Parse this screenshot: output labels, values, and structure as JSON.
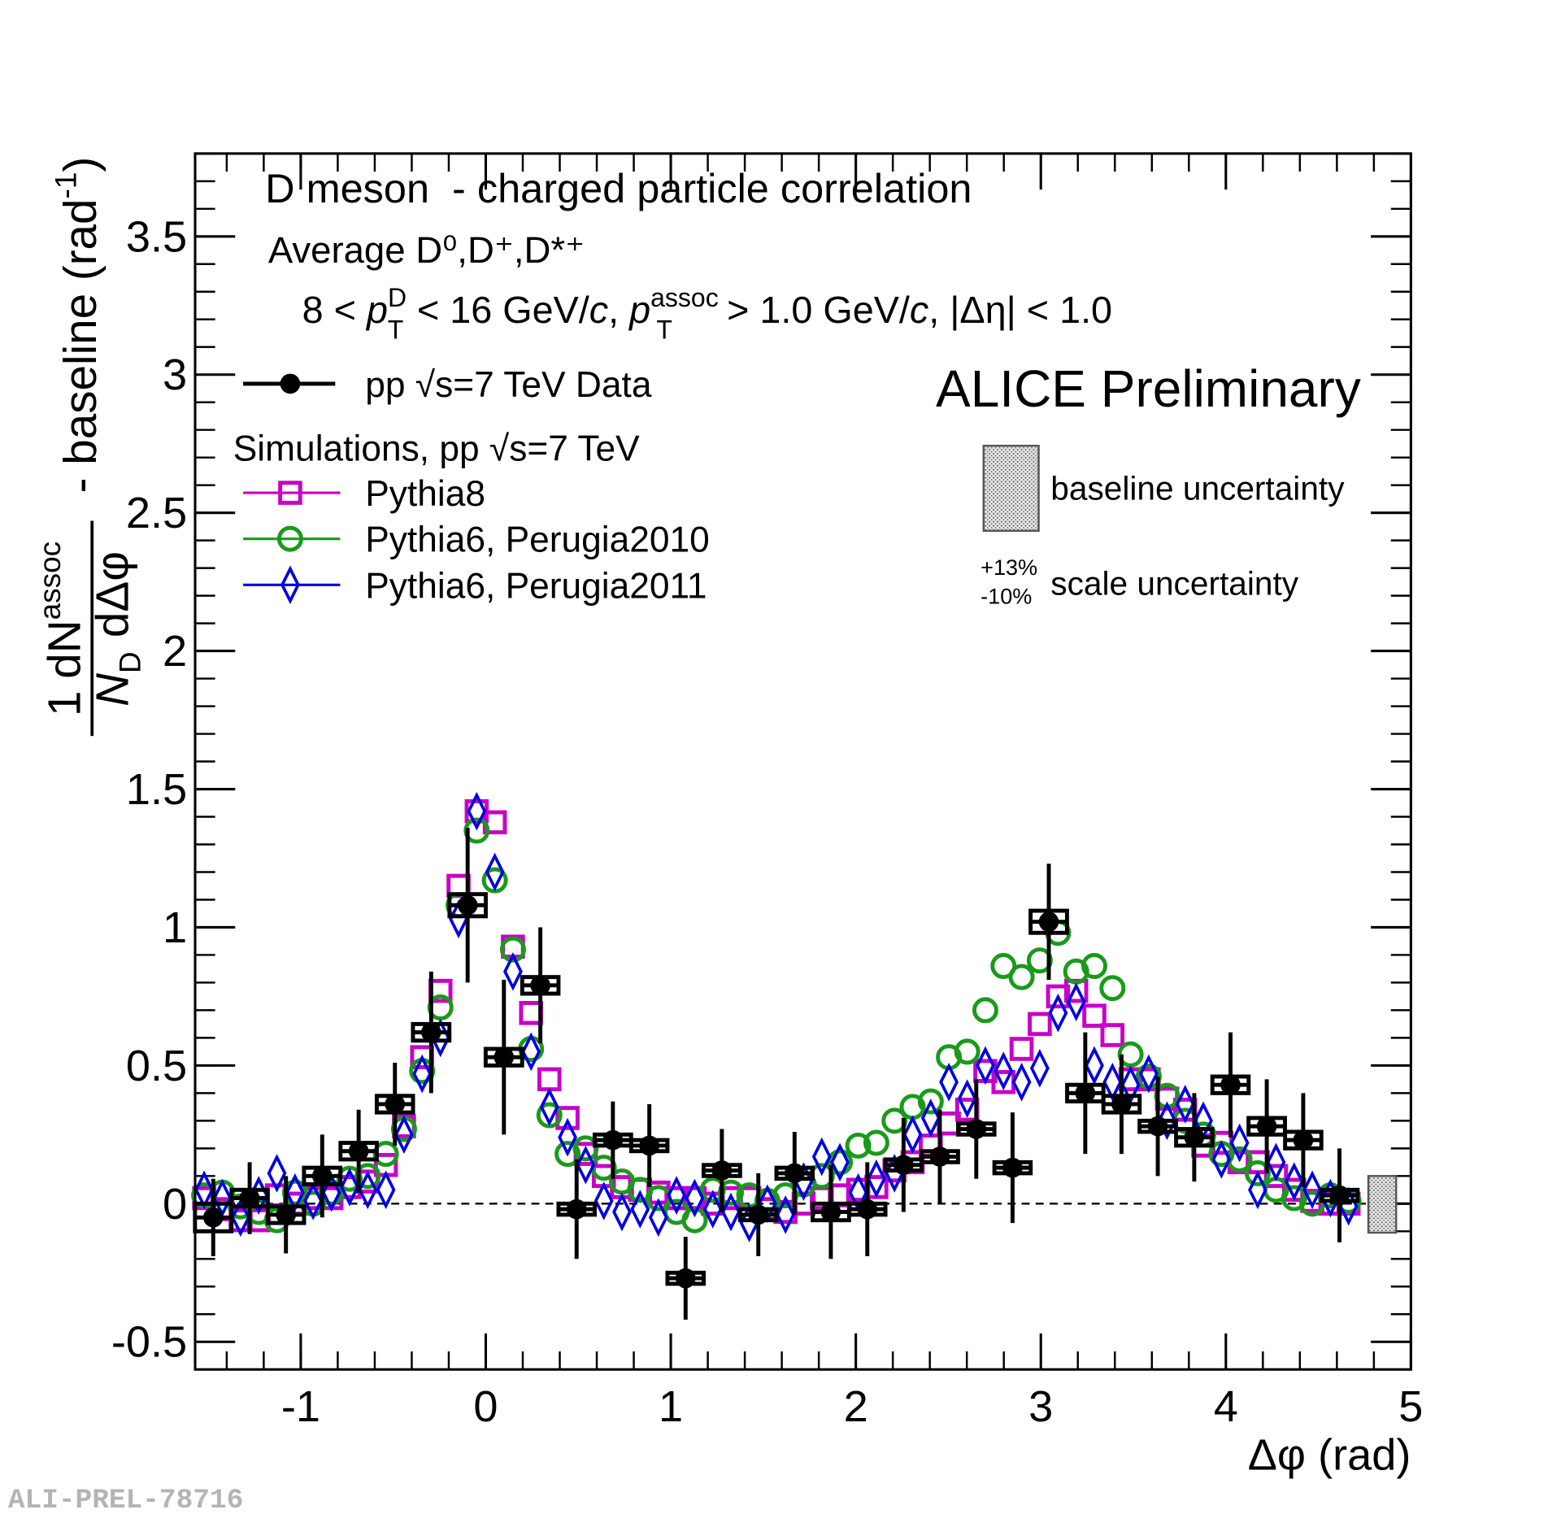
{
  "chart_data": {
    "type": "scatter",
    "title": "D meson  - charged particle correlation",
    "subtitle": "Average D⁰,D⁺,D*⁺",
    "kinematics": [
      "8 < ",
      "p",
      "D",
      "T",
      " < 16 GeV/",
      "c",
      ", ",
      "p",
      "assoc",
      "T",
      " > 1.0 GeV/",
      "c",
      ", |Δη| < 1.0"
    ],
    "ylabel": [
      "1",
      "dN",
      "assoc",
      "N",
      "D",
      "dΔφ",
      " - baseline (rad",
      "-1",
      ")"
    ],
    "xlabel": "Δφ (rad)",
    "annotation": "ALICE Preliminary",
    "legend_header": "Simulations, pp √s=7 TeV",
    "baseline_label": "baseline uncertainty",
    "scale_plus": "+13%",
    "scale_minus": "-10%",
    "scale_label": "scale uncertainty",
    "watermark": "ALI-PREL-78716",
    "xlim": [
      -1.5708,
      5
    ],
    "xticks": [
      -1,
      0,
      1,
      2,
      3,
      4,
      5
    ],
    "ylim": [
      -0.6,
      3.8
    ],
    "yticks": [
      -0.5,
      0,
      0.5,
      1,
      1.5,
      2,
      2.5,
      3,
      3.5
    ],
    "data": {
      "name": "pp √s=7 TeV Data",
      "color": "#000000",
      "x": [
        -1.473,
        -1.276,
        -1.08,
        -0.884,
        -0.687,
        -0.491,
        -0.295,
        -0.098,
        0.098,
        0.295,
        0.491,
        0.687,
        0.884,
        1.08,
        1.276,
        1.473,
        1.669,
        1.865,
        2.062,
        2.258,
        2.454,
        2.651,
        2.847,
        3.043,
        3.24,
        3.436,
        3.632,
        3.829,
        4.025,
        4.221,
        4.418,
        4.614
      ],
      "values": [
        -0.05,
        0.02,
        -0.04,
        0.1,
        0.19,
        0.36,
        0.62,
        1.08,
        0.53,
        0.79,
        -0.02,
        0.23,
        0.21,
        -0.27,
        0.12,
        -0.04,
        0.11,
        -0.03,
        -0.02,
        0.14,
        0.17,
        0.27,
        0.13,
        1.02,
        0.4,
        0.36,
        0.28,
        0.24,
        0.43,
        0.28,
        0.23,
        0.03
      ],
      "errors": [
        0.14,
        0.13,
        0.14,
        0.15,
        0.15,
        0.15,
        0.22,
        0.28,
        0.28,
        0.21,
        0.18,
        0.14,
        0.15,
        0.15,
        0.15,
        0.15,
        0.15,
        0.17,
        0.17,
        0.17,
        0.17,
        0.18,
        0.2,
        0.21,
        0.22,
        0.18,
        0.18,
        0.16,
        0.19,
        0.17,
        0.17,
        0.17
      ],
      "syst": [
        0.05,
        0.03,
        0.03,
        0.03,
        0.03,
        0.03,
        0.03,
        0.04,
        0.03,
        0.03,
        0.02,
        0.02,
        0.02,
        0.02,
        0.02,
        0.02,
        0.02,
        0.03,
        0.02,
        0.02,
        0.02,
        0.02,
        0.02,
        0.04,
        0.03,
        0.03,
        0.02,
        0.03,
        0.03,
        0.03,
        0.03,
        0.02
      ]
    },
    "sim_x": [
      -1.522,
      -1.424,
      -1.325,
      -1.227,
      -1.129,
      -1.031,
      -0.933,
      -0.834,
      -0.736,
      -0.638,
      -0.54,
      -0.442,
      -0.344,
      -0.245,
      -0.147,
      -0.049,
      0.049,
      0.147,
      0.245,
      0.344,
      0.442,
      0.54,
      0.638,
      0.736,
      0.834,
      0.933,
      1.031,
      1.129,
      1.227,
      1.325,
      1.424,
      1.522,
      1.62,
      1.718,
      1.816,
      1.914,
      2.013,
      2.111,
      2.209,
      2.307,
      2.405,
      2.503,
      2.602,
      2.7,
      2.798,
      2.896,
      2.994,
      3.093,
      3.191,
      3.289,
      3.387,
      3.485,
      3.583,
      3.682,
      3.78,
      3.878,
      3.976,
      4.074,
      4.172,
      4.271,
      4.369,
      4.467,
      4.565,
      4.663
    ],
    "series": [
      {
        "name": "Pythia8",
        "color": "#c800c8",
        "marker": "square",
        "values": [
          0.02,
          -0.02,
          -0.06,
          -0.06,
          0.03,
          0.0,
          0.02,
          0.02,
          0.06,
          0.08,
          0.14,
          0.28,
          0.53,
          0.77,
          1.15,
          1.42,
          1.38,
          0.93,
          0.69,
          0.45,
          0.31,
          0.18,
          0.1,
          0.06,
          0.05,
          0.04,
          0.02,
          0.02,
          0.0,
          0.02,
          0.02,
          -0.02,
          -0.03,
          0.0,
          0.02,
          0.03,
          0.05,
          0.06,
          0.12,
          0.15,
          0.21,
          0.29,
          0.34,
          0.48,
          0.44,
          0.56,
          0.65,
          0.75,
          0.77,
          0.68,
          0.61,
          0.45,
          0.45,
          0.38,
          0.34,
          0.21,
          0.22,
          0.15,
          0.15,
          0.1,
          0.05,
          0.01,
          0.0,
          0.0
        ]
      },
      {
        "name": "Pythia6, Perugia2010",
        "color": "#1a9a1a",
        "marker": "circle",
        "values": [
          0.03,
          0.04,
          -0.01,
          -0.03,
          -0.06,
          0.04,
          0.0,
          0.04,
          0.09,
          0.1,
          0.18,
          0.27,
          0.48,
          0.71,
          1.08,
          1.35,
          1.17,
          0.92,
          0.56,
          0.32,
          0.18,
          0.2,
          0.13,
          0.08,
          0.05,
          0.02,
          -0.03,
          -0.06,
          0.05,
          0.04,
          0.03,
          0.01,
          0.03,
          0.07,
          0.1,
          0.15,
          0.21,
          0.22,
          0.3,
          0.35,
          0.37,
          0.53,
          0.55,
          0.7,
          0.86,
          0.82,
          0.88,
          0.98,
          0.84,
          0.86,
          0.78,
          0.54,
          0.46,
          0.39,
          0.3,
          0.25,
          0.18,
          0.16,
          0.11,
          0.05,
          0.02,
          0.0,
          0.03,
          0.01
        ]
      },
      {
        "name": "Pythia6, Perugia2011",
        "color": "#0000e0",
        "marker": "diamond",
        "values": [
          0.05,
          0.02,
          -0.05,
          0.03,
          0.11,
          0.04,
          0.01,
          0.04,
          0.06,
          0.05,
          0.05,
          0.25,
          0.47,
          0.6,
          1.03,
          1.42,
          1.2,
          0.84,
          0.55,
          0.35,
          0.24,
          0.14,
          0.01,
          -0.03,
          -0.02,
          -0.05,
          0.03,
          0.02,
          -0.02,
          -0.03,
          -0.07,
          0.0,
          -0.04,
          0.08,
          0.17,
          0.15,
          0.04,
          0.09,
          0.11,
          0.25,
          0.31,
          0.44,
          0.38,
          0.5,
          0.48,
          0.44,
          0.49,
          0.69,
          0.73,
          0.5,
          0.44,
          0.43,
          0.47,
          0.3,
          0.36,
          0.3,
          0.16,
          0.22,
          0.05,
          0.15,
          0.08,
          0.05,
          0.02,
          -0.01
        ]
      }
    ],
    "baseline_box": {
      "x": [
        4.77,
        4.92
      ],
      "y": [
        -0.105,
        0.1
      ]
    }
  }
}
